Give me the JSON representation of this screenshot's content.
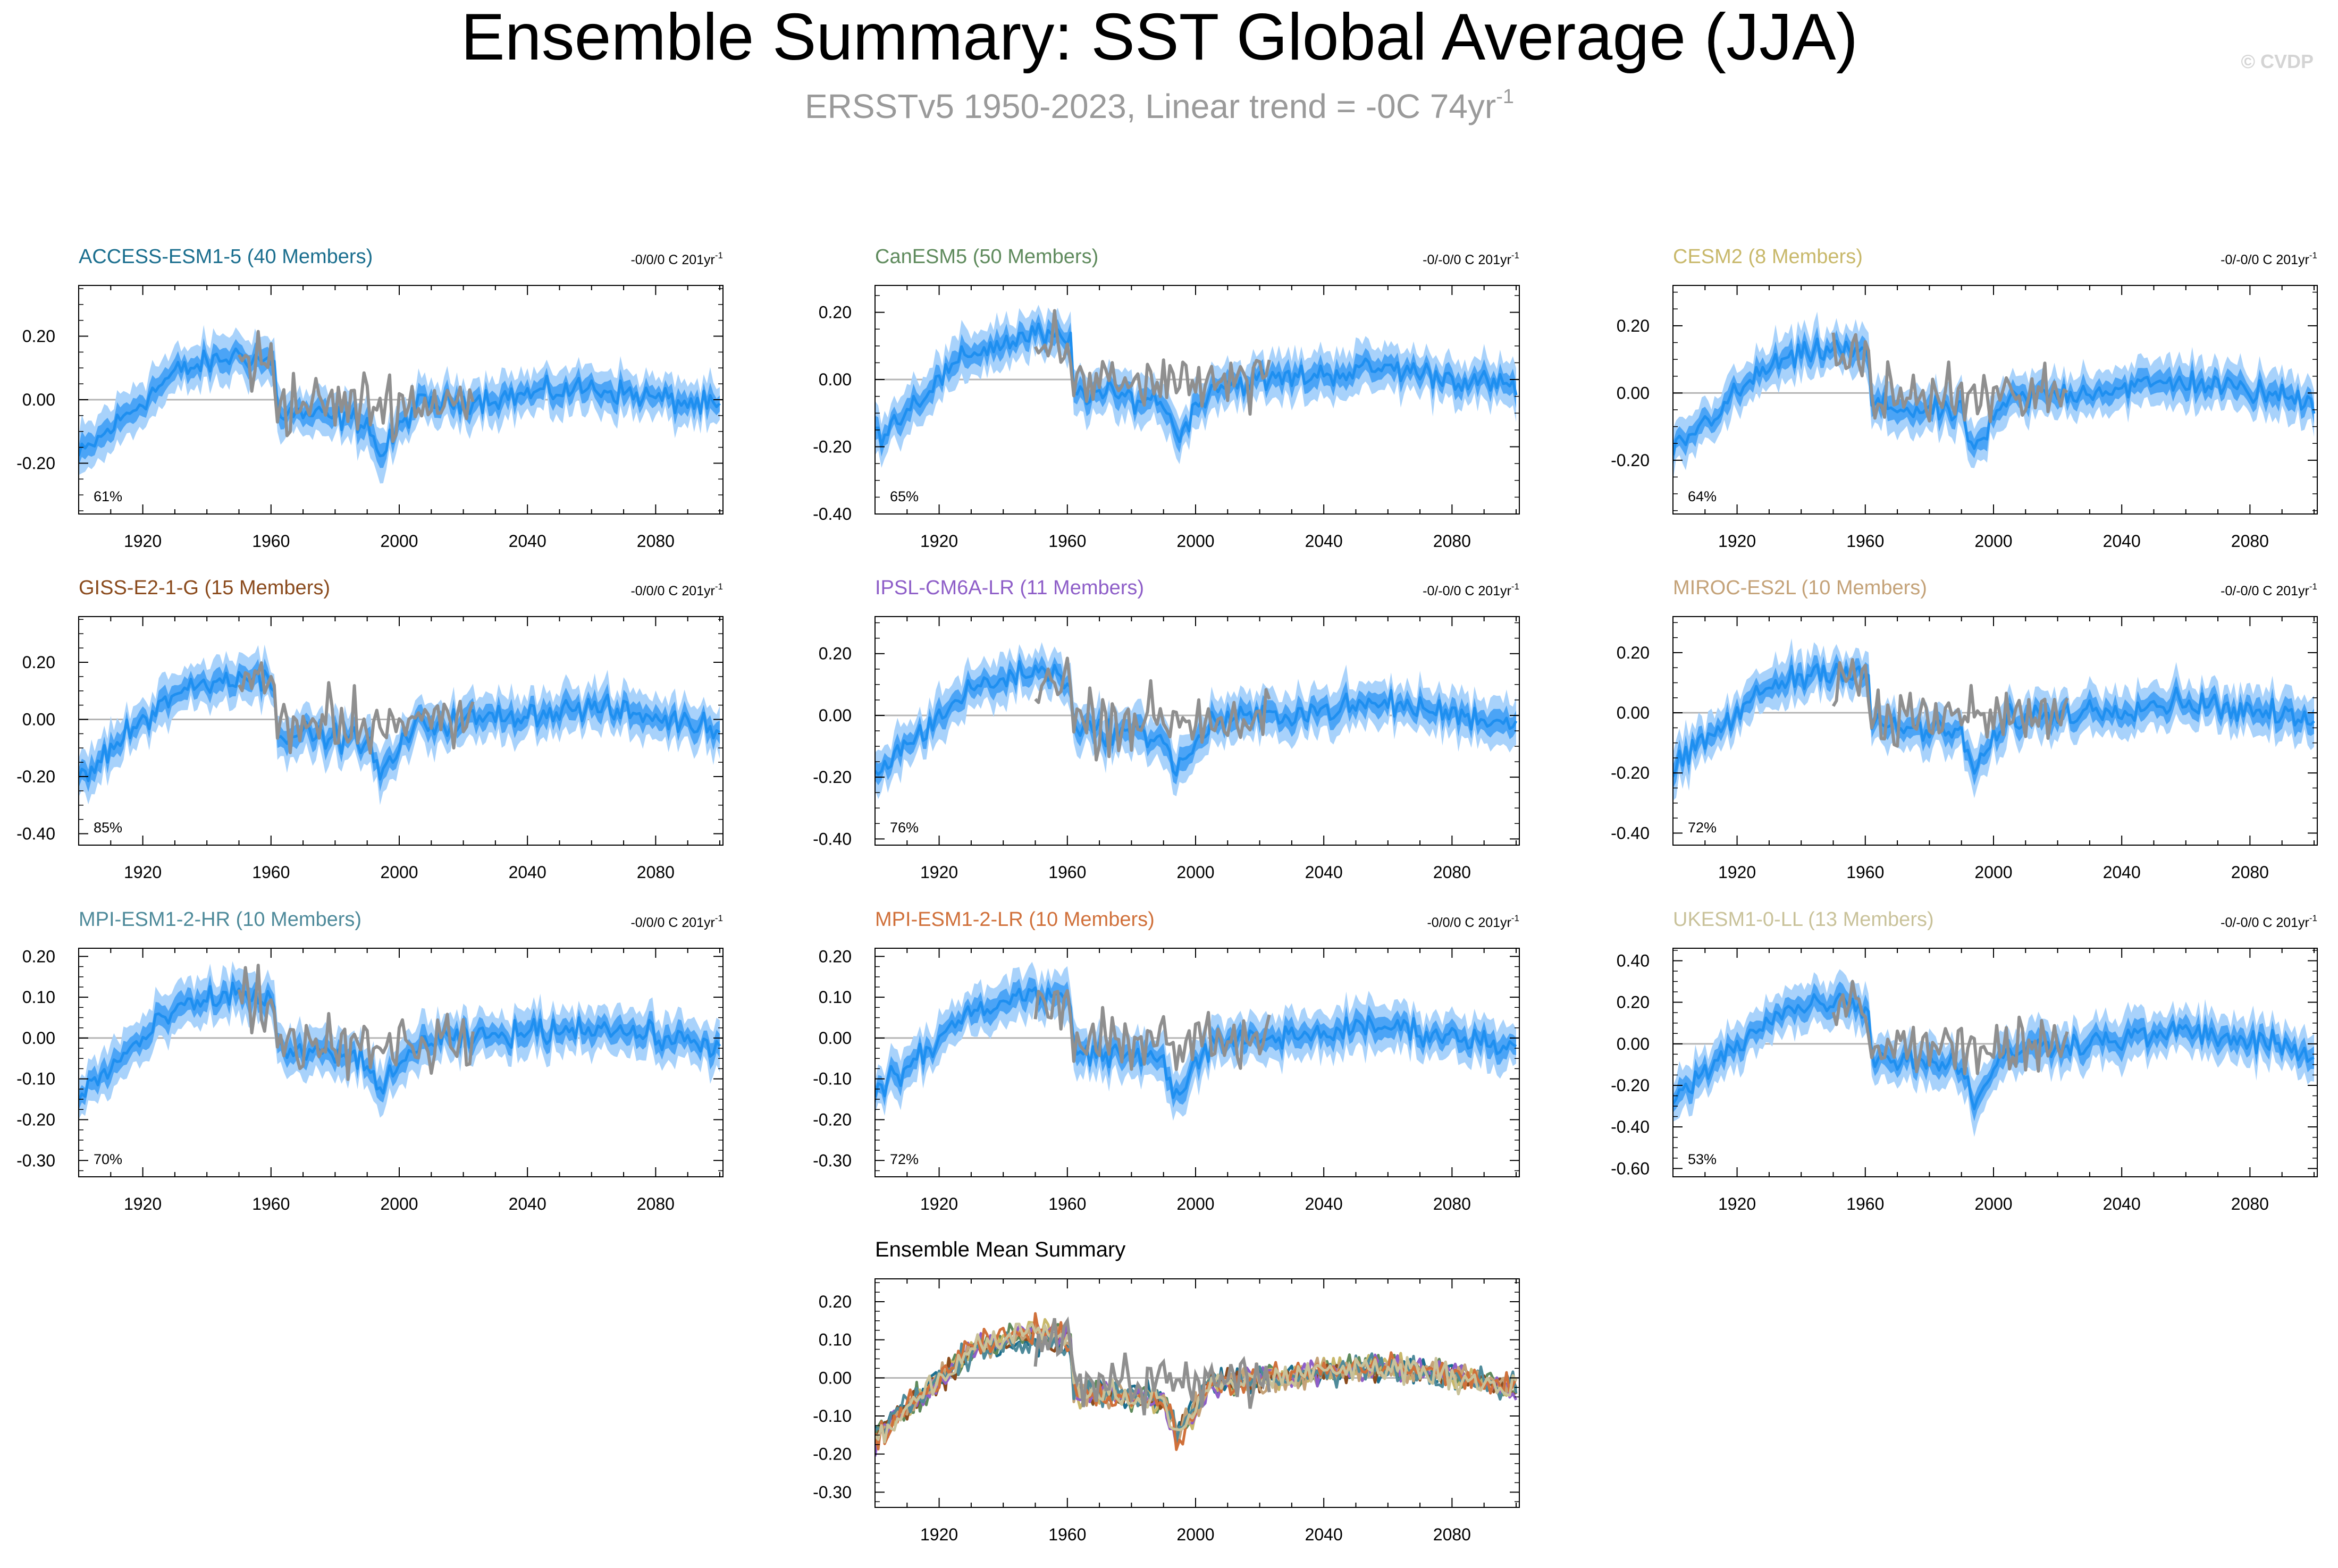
{
  "title": "Ensemble Summary: SST Global Average (JJA)",
  "subtitle_main": "ERSSTv5 1950-2023, Linear trend = -0C 74yr",
  "subtitle_sup": "-1",
  "watermark": "© CVDP",
  "colors": {
    "mean_line": "#1e8ff0",
    "inner_band": "#3b9cf5",
    "outer_band": "#a8d2fb",
    "observed_line": "#8f8f8f",
    "zero_line": "#b4b4b4",
    "axis": "#000000",
    "title": "#000000",
    "subtitle": "#9a9a9a",
    "watermark": "#d4d4d4"
  },
  "chart_data": [
    {
      "id": "access",
      "type": "line",
      "title": "ACCESS-ESM1-5 (40 Members)",
      "title_color": "#1a6e8e",
      "trend_label": "-0/0/0 C 201yr",
      "trend_sup": "-1",
      "pct_label": "61%",
      "ylim": [
        -0.36,
        0.36
      ],
      "yticks": [
        -0.2,
        0,
        0.2
      ],
      "ytick_labels": [
        "-0.20",
        "0.00",
        "0.20"
      ],
      "xlim": [
        1900,
        2101
      ],
      "xticks": [
        1920,
        1960,
        2000,
        2040,
        2080
      ],
      "xtick_labels": [
        "1920",
        "1960",
        "2000",
        "2040",
        "2080"
      ],
      "series": [
        {
          "name": "Ensemble mean",
          "kind": "ensemble-mean"
        },
        {
          "name": "Inner range",
          "kind": "inner-range"
        },
        {
          "name": "Outer range",
          "kind": "outer-range"
        },
        {
          "name": "ERSSTv5 observed",
          "kind": "observed",
          "years": [
            1950,
            2023
          ]
        }
      ]
    },
    {
      "id": "canesm",
      "type": "line",
      "title": "CanESM5 (50 Members)",
      "title_color": "#5e8a5c",
      "trend_label": "-0/-0/0 C 201yr",
      "trend_sup": "-1",
      "pct_label": "65%",
      "ylim": [
        -0.4,
        0.28
      ],
      "yticks": [
        -0.4,
        -0.2,
        0,
        0.2
      ],
      "ytick_labels": [
        "-0.40",
        "-0.20",
        "0.00",
        "0.20"
      ],
      "xlim": [
        1900,
        2101
      ],
      "xticks": [
        1920,
        1960,
        2000,
        2040,
        2080
      ],
      "xtick_labels": [
        "1920",
        "1960",
        "2000",
        "2040",
        "2080"
      ],
      "series": [
        {
          "name": "Ensemble mean",
          "kind": "ensemble-mean"
        },
        {
          "name": "Inner range",
          "kind": "inner-range"
        },
        {
          "name": "Outer range",
          "kind": "outer-range"
        },
        {
          "name": "ERSSTv5 observed",
          "kind": "observed",
          "years": [
            1950,
            2023
          ]
        }
      ]
    },
    {
      "id": "cesm",
      "type": "line",
      "title": "CESM2 (8 Members)",
      "title_color": "#c8b86a",
      "trend_label": "-0/-0/0 C 201yr",
      "trend_sup": "-1",
      "pct_label": "64%",
      "ylim": [
        -0.36,
        0.32
      ],
      "yticks": [
        -0.2,
        0,
        0.2
      ],
      "ytick_labels": [
        "-0.20",
        "0.00",
        "0.20"
      ],
      "xlim": [
        1900,
        2101
      ],
      "xticks": [
        1920,
        1960,
        2000,
        2040,
        2080
      ],
      "xtick_labels": [
        "1920",
        "1960",
        "2000",
        "2040",
        "2080"
      ],
      "series": [
        {
          "name": "Ensemble mean",
          "kind": "ensemble-mean"
        },
        {
          "name": "Inner range",
          "kind": "inner-range"
        },
        {
          "name": "Outer range",
          "kind": "outer-range"
        },
        {
          "name": "ERSSTv5 observed",
          "kind": "observed",
          "years": [
            1950,
            2023
          ]
        }
      ]
    },
    {
      "id": "giss",
      "type": "line",
      "title": "GISS-E2-1-G (15 Members)",
      "title_color": "#8a4a1c",
      "trend_label": "-0/0/0 C 201yr",
      "trend_sup": "-1",
      "pct_label": "85%",
      "ylim": [
        -0.44,
        0.36
      ],
      "yticks": [
        -0.4,
        -0.2,
        0,
        0.2
      ],
      "ytick_labels": [
        "-0.40",
        "-0.20",
        "0.00",
        "0.20"
      ],
      "xlim": [
        1900,
        2101
      ],
      "xticks": [
        1920,
        1960,
        2000,
        2040,
        2080
      ],
      "xtick_labels": [
        "1920",
        "1960",
        "2000",
        "2040",
        "2080"
      ],
      "series": [
        {
          "name": "Ensemble mean",
          "kind": "ensemble-mean"
        },
        {
          "name": "Inner range",
          "kind": "inner-range"
        },
        {
          "name": "Outer range",
          "kind": "outer-range"
        },
        {
          "name": "ERSSTv5 observed",
          "kind": "observed",
          "years": [
            1950,
            2023
          ]
        }
      ]
    },
    {
      "id": "ipsl",
      "type": "line",
      "title": "IPSL-CM6A-LR (11 Members)",
      "title_color": "#8e5ec8",
      "trend_label": "-0/-0/0 C 201yr",
      "trend_sup": "-1",
      "pct_label": "76%",
      "ylim": [
        -0.42,
        0.32
      ],
      "yticks": [
        -0.4,
        -0.2,
        0,
        0.2
      ],
      "ytick_labels": [
        "-0.40",
        "-0.20",
        "0.00",
        "0.20"
      ],
      "xlim": [
        1900,
        2101
      ],
      "xticks": [
        1920,
        1960,
        2000,
        2040,
        2080
      ],
      "xtick_labels": [
        "1920",
        "1960",
        "2000",
        "2040",
        "2080"
      ],
      "series": [
        {
          "name": "Ensemble mean",
          "kind": "ensemble-mean"
        },
        {
          "name": "Inner range",
          "kind": "inner-range"
        },
        {
          "name": "Outer range",
          "kind": "outer-range"
        },
        {
          "name": "ERSSTv5 observed",
          "kind": "observed",
          "years": [
            1950,
            2023
          ]
        }
      ]
    },
    {
      "id": "miroc",
      "type": "line",
      "title": "MIROC-ES2L (10 Members)",
      "title_color": "#c4a278",
      "trend_label": "-0/-0/0 C 201yr",
      "trend_sup": "-1",
      "pct_label": "72%",
      "ylim": [
        -0.44,
        0.32
      ],
      "yticks": [
        -0.4,
        -0.2,
        0,
        0.2
      ],
      "ytick_labels": [
        "-0.40",
        "-0.20",
        "0.00",
        "0.20"
      ],
      "xlim": [
        1900,
        2101
      ],
      "xticks": [
        1920,
        1960,
        2000,
        2040,
        2080
      ],
      "xtick_labels": [
        "1920",
        "1960",
        "2000",
        "2040",
        "2080"
      ],
      "series": [
        {
          "name": "Ensemble mean",
          "kind": "ensemble-mean"
        },
        {
          "name": "Inner range",
          "kind": "inner-range"
        },
        {
          "name": "Outer range",
          "kind": "outer-range"
        },
        {
          "name": "ERSSTv5 observed",
          "kind": "observed",
          "years": [
            1950,
            2023
          ]
        }
      ]
    },
    {
      "id": "mpihr",
      "type": "line",
      "title": "MPI-ESM1-2-HR (10 Members)",
      "title_color": "#4e8a9a",
      "trend_label": "-0/0/0 C 201yr",
      "trend_sup": "-1",
      "pct_label": "70%",
      "ylim": [
        -0.34,
        0.22
      ],
      "yticks": [
        -0.3,
        -0.2,
        -0.1,
        0,
        0.1,
        0.2
      ],
      "ytick_labels": [
        "-0.30",
        "-0.20",
        "-0.10",
        "0.00",
        "0.10",
        "0.20"
      ],
      "xlim": [
        1900,
        2101
      ],
      "xticks": [
        1920,
        1960,
        2000,
        2040,
        2080
      ],
      "xtick_labels": [
        "1920",
        "1960",
        "2000",
        "2040",
        "2080"
      ],
      "series": [
        {
          "name": "Ensemble mean",
          "kind": "ensemble-mean"
        },
        {
          "name": "Inner range",
          "kind": "inner-range"
        },
        {
          "name": "Outer range",
          "kind": "outer-range"
        },
        {
          "name": "ERSSTv5 observed",
          "kind": "observed",
          "years": [
            1950,
            2023
          ]
        }
      ]
    },
    {
      "id": "mpilr",
      "type": "line",
      "title": "MPI-ESM1-2-LR (10 Members)",
      "title_color": "#d0703a",
      "trend_label": "-0/0/0 C 201yr",
      "trend_sup": "-1",
      "pct_label": "72%",
      "ylim": [
        -0.34,
        0.22
      ],
      "yticks": [
        -0.3,
        -0.2,
        -0.1,
        0,
        0.1,
        0.2
      ],
      "ytick_labels": [
        "-0.30",
        "-0.20",
        "-0.10",
        "0.00",
        "0.10",
        "0.20"
      ],
      "xlim": [
        1900,
        2101
      ],
      "xticks": [
        1920,
        1960,
        2000,
        2040,
        2080
      ],
      "xtick_labels": [
        "1920",
        "1960",
        "2000",
        "2040",
        "2080"
      ],
      "series": [
        {
          "name": "Ensemble mean",
          "kind": "ensemble-mean"
        },
        {
          "name": "Inner range",
          "kind": "inner-range"
        },
        {
          "name": "Outer range",
          "kind": "outer-range"
        },
        {
          "name": "ERSSTv5 observed",
          "kind": "observed",
          "years": [
            1950,
            2023
          ]
        }
      ]
    },
    {
      "id": "ukesm",
      "type": "line",
      "title": "UKESM1-0-LL (13 Members)",
      "title_color": "#c9c29a",
      "trend_label": "-0/-0/0 C 201yr",
      "trend_sup": "-1",
      "pct_label": "53%",
      "ylim": [
        -0.64,
        0.46
      ],
      "yticks": [
        -0.6,
        -0.4,
        -0.2,
        0,
        0.2,
        0.4
      ],
      "ytick_labels": [
        "-0.60",
        "-0.40",
        "-0.20",
        "0.00",
        "0.20",
        "0.40"
      ],
      "xlim": [
        1900,
        2101
      ],
      "xticks": [
        1920,
        1960,
        2000,
        2040,
        2080
      ],
      "xtick_labels": [
        "1920",
        "1960",
        "2000",
        "2040",
        "2080"
      ],
      "series": [
        {
          "name": "Ensemble mean",
          "kind": "ensemble-mean"
        },
        {
          "name": "Inner range",
          "kind": "inner-range"
        },
        {
          "name": "Outer range",
          "kind": "outer-range"
        },
        {
          "name": "ERSSTv5 observed",
          "kind": "observed",
          "years": [
            1950,
            2023
          ]
        }
      ]
    },
    {
      "id": "summary",
      "type": "line",
      "title": "Ensemble Mean Summary",
      "title_color": "#000000",
      "trend_label": "",
      "trend_sup": "",
      "pct_label": "",
      "ylim": [
        -0.34,
        0.26
      ],
      "yticks": [
        -0.3,
        -0.2,
        -0.1,
        0,
        0.1,
        0.2
      ],
      "ytick_labels": [
        "-0.30",
        "-0.20",
        "-0.10",
        "0.00",
        "0.10",
        "0.20"
      ],
      "xlim": [
        1900,
        2101
      ],
      "xticks": [
        1920,
        1960,
        2000,
        2040,
        2080
      ],
      "xtick_labels": [
        "1920",
        "1960",
        "2000",
        "2040",
        "2080"
      ],
      "series": [
        {
          "name": "ACCESS-ESM1-5",
          "color": "#1a6e8e"
        },
        {
          "name": "CanESM5",
          "color": "#5e8a5c"
        },
        {
          "name": "CESM2",
          "color": "#c8b86a"
        },
        {
          "name": "GISS-E2-1-G",
          "color": "#8a4a1c"
        },
        {
          "name": "IPSL-CM6A-LR",
          "color": "#8e5ec8"
        },
        {
          "name": "MIROC-ES2L",
          "color": "#c4a278"
        },
        {
          "name": "MPI-ESM1-2-HR",
          "color": "#4e8a9a"
        },
        {
          "name": "MPI-ESM1-2-LR",
          "color": "#d0703a"
        },
        {
          "name": "UKESM1-0-LL",
          "color": "#c9c29a"
        },
        {
          "name": "ERSSTv5 observed",
          "color": "#8f8f8f",
          "years": [
            1950,
            2023
          ]
        }
      ]
    }
  ]
}
